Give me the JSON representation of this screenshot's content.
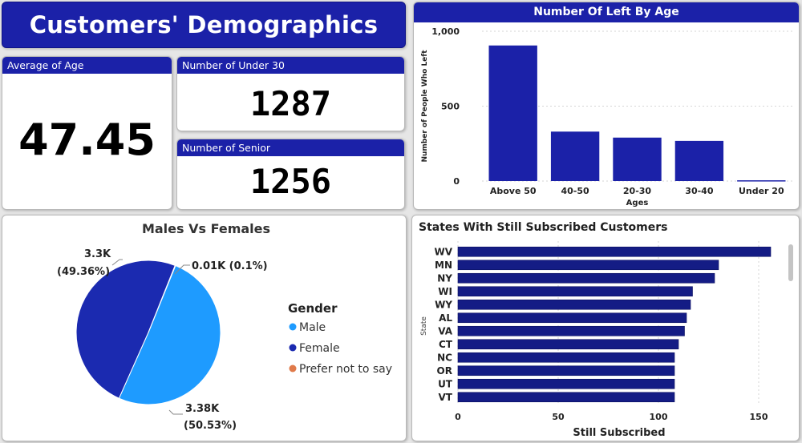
{
  "dashboard_title": "Customers' Demographics",
  "kpis": {
    "avg_age": {
      "label": "Average of Age",
      "value": "47.45"
    },
    "under_30": {
      "label": "Number of Under 30",
      "value": "1287"
    },
    "senior": {
      "label": "Number of Senior",
      "value": "1256"
    }
  },
  "colors": {
    "brand": "#1b21a8",
    "male": "#1e9bff",
    "female": "#1b2ab0",
    "prefer_not": "#e07a4a"
  },
  "age_chart": {
    "title": "Number Of Left By Age",
    "chart_data": {
      "type": "bar",
      "categories": [
        "Above 50",
        "40-50",
        "20-30",
        "30-40",
        "Under 20"
      ],
      "values": [
        905,
        330,
        290,
        268,
        5
      ],
      "xlabel": "Ages",
      "ylabel": "Number of People Who Left",
      "ylim": [
        0,
        1000
      ],
      "yticks": [
        0,
        500,
        1000
      ],
      "ytick_labels": [
        "0",
        "500",
        "1,000"
      ]
    }
  },
  "gender_chart": {
    "title": "Males Vs Females",
    "legend_title": "Gender",
    "chart_data": {
      "type": "pie",
      "labels": [
        "Male",
        "Female",
        "Prefer not to say"
      ],
      "values": [
        50.53,
        49.36,
        0.1
      ],
      "data_labels": [
        [
          "3.38K",
          "(50.53%)"
        ],
        [
          "3.3K",
          "(49.36%)"
        ],
        [
          "0.01K (0.1%)"
        ]
      ],
      "legend": "right"
    }
  },
  "states_chart": {
    "title": "States With Still Subscribed Customers",
    "chart_data": {
      "type": "bar",
      "orientation": "horizontal",
      "categories": [
        "WV",
        "MN",
        "NY",
        "WI",
        "WY",
        "AL",
        "VA",
        "CT",
        "NC",
        "OR",
        "UT",
        "VT"
      ],
      "values": [
        156,
        130,
        128,
        117,
        116,
        114,
        113,
        110,
        108,
        108,
        108,
        108
      ],
      "xlabel": "Still Subscribed",
      "ylabel": "State",
      "xlim": [
        0,
        165
      ],
      "xticks": [
        0,
        50,
        100,
        150
      ]
    }
  }
}
